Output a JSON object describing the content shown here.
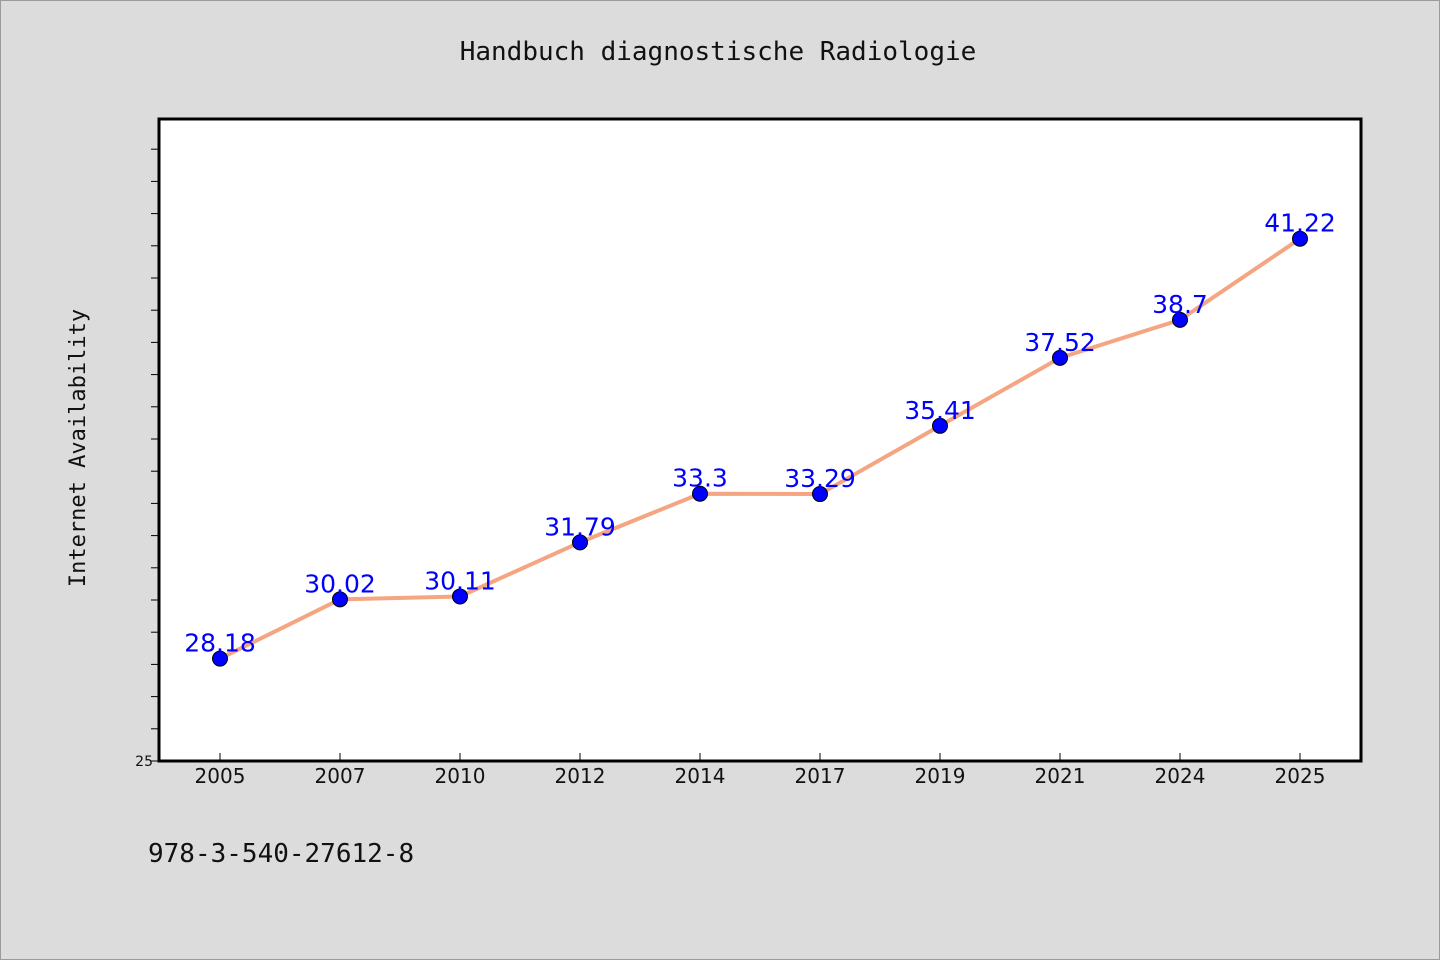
{
  "footnote": "978-3-540-27612-8",
  "chart_data": {
    "type": "line",
    "title": "Handbuch diagnostische Radiologie",
    "xlabel": "",
    "ylabel": "Internet Availability",
    "categories": [
      "2005",
      "2007",
      "2010",
      "2012",
      "2014",
      "2017",
      "2019",
      "2021",
      "2024",
      "2025"
    ],
    "values": [
      28.18,
      30.02,
      30.11,
      31.79,
      33.3,
      33.29,
      35.41,
      37.52,
      38.7,
      41.22
    ],
    "data_labels": [
      "28.18",
      "30.02",
      "30.11",
      "31.79",
      "33.3",
      "33.29",
      "35.41",
      "37.52",
      "38.7",
      "41.22"
    ],
    "ylim": [
      25,
      45
    ],
    "y_tick_labels": [
      "25"
    ],
    "y_minor_step": 1,
    "grid": false,
    "line_color": "#f4a582",
    "marker_color": "#0000ff",
    "label_color": "#0000ff"
  }
}
